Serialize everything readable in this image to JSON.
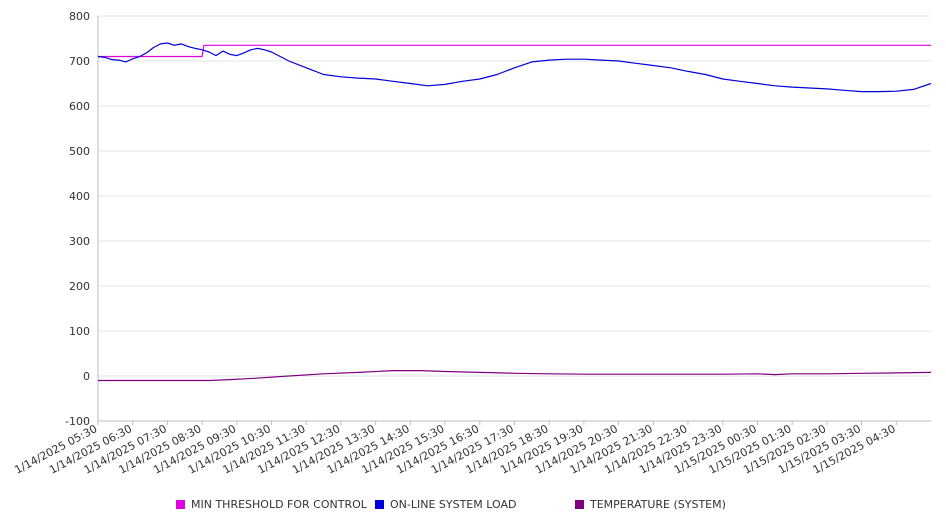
{
  "chart_data": {
    "type": "line",
    "y_ticks": [
      "800",
      "700",
      "600",
      "500",
      "400",
      "300",
      "200",
      "100",
      "0",
      "-100"
    ],
    "ylim": [
      -100,
      800
    ],
    "grid": true,
    "legend_position": "bottom",
    "x_labels": [
      "1/14/2025 05:30",
      "1/14/2025 06:30",
      "1/14/2025 07:30",
      "1/14/2025 08:30",
      "1/14/2025 09:30",
      "1/14/2025 10:30",
      "1/14/2025 11:30",
      "1/14/2025 12:30",
      "1/14/2025 13:30",
      "1/14/2025 14:30",
      "1/14/2025 15:30",
      "1/14/2025 16:30",
      "1/14/2025 17:30",
      "1/14/2025 18:30",
      "1/14/2025 19:30",
      "1/14/2025 20:30",
      "1/14/2025 21:30",
      "1/14/2025 22:30",
      "1/14/2025 23:30",
      "1/15/2025 00:30",
      "1/15/2025 01:30",
      "1/15/2025 02:30",
      "1/15/2025 03:30",
      "1/15/2025 04:30"
    ],
    "x_hours": [
      0,
      24
    ],
    "series": [
      {
        "name": "MIN THRESHOLD FOR CONTROL",
        "color": "#e000e0",
        "x": [
          0,
          3,
          3.05,
          24
        ],
        "values": [
          710,
          710,
          735,
          735
        ]
      },
      {
        "name": "ON-LINE SYSTEM LOAD",
        "color": "#0000dd",
        "x": [
          0,
          0.2,
          0.4,
          0.6,
          0.8,
          1.0,
          1.2,
          1.4,
          1.6,
          1.8,
          2.0,
          2.2,
          2.4,
          2.6,
          2.8,
          3.0,
          3.2,
          3.4,
          3.6,
          3.8,
          4.0,
          4.2,
          4.4,
          4.6,
          4.8,
          5.0,
          5.5,
          6.0,
          6.5,
          7.0,
          7.5,
          8.0,
          8.5,
          9.0,
          9.5,
          10.0,
          10.5,
          11.0,
          11.5,
          12.0,
          12.5,
          13.0,
          13.5,
          14.0,
          14.5,
          15.0,
          15.5,
          16.0,
          16.5,
          17.0,
          17.5,
          18.0,
          18.5,
          19.0,
          19.5,
          20.0,
          20.5,
          21.0,
          21.5,
          22.0,
          22.5,
          23.0,
          23.5,
          24.0
        ],
        "values": [
          710,
          708,
          703,
          702,
          698,
          705,
          710,
          718,
          730,
          738,
          740,
          735,
          738,
          732,
          728,
          725,
          720,
          712,
          722,
          715,
          712,
          718,
          725,
          728,
          725,
          720,
          700,
          685,
          670,
          665,
          662,
          660,
          655,
          650,
          645,
          648,
          655,
          660,
          670,
          685,
          698,
          702,
          704,
          704,
          702,
          700,
          695,
          690,
          685,
          677,
          670,
          660,
          655,
          650,
          645,
          642,
          640,
          638,
          635,
          632,
          632,
          633,
          637,
          650
        ]
      },
      {
        "name": "TEMPERATURE (SYSTEM)",
        "color": "#800080",
        "x": [
          0,
          3.2,
          3.8,
          4.5,
          5.5,
          6.5,
          7.5,
          8.5,
          9.3,
          10.0,
          11.0,
          12.0,
          13.0,
          14.0,
          15.0,
          16.0,
          17.0,
          18.0,
          19.0,
          19.5,
          20.0,
          21.0,
          22.0,
          23.0,
          24.0
        ],
        "values": [
          -10,
          -10,
          -8,
          -5,
          0,
          5,
          8,
          12,
          12,
          10,
          8,
          6,
          5,
          4,
          4,
          4,
          4,
          4,
          5,
          3,
          5,
          5,
          6,
          7,
          8
        ]
      }
    ]
  }
}
